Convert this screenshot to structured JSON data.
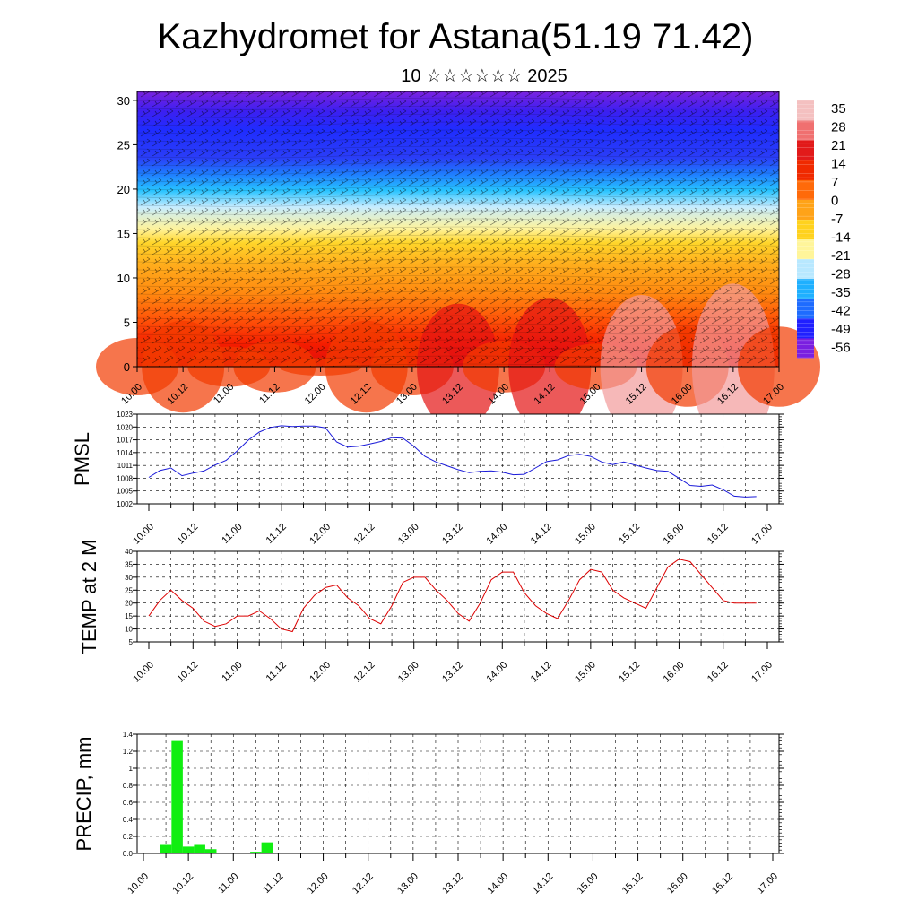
{
  "title": "Kazhydromet for Astana(51.19 71.42)",
  "subtitle": "10 ☆☆☆☆☆☆ 2025",
  "colors": {
    "pmsl_line": "#1a1ad9",
    "temp_line": "#dd0000",
    "precip_bar": "#11ee11",
    "axis": "#000000"
  },
  "chart_data": [
    {
      "id": "cross-section",
      "type": "heatmap",
      "title": "",
      "xlabel": "",
      "ylabel": "",
      "x_ticks": [
        "10.00",
        "10.12",
        "11.00",
        "11.12",
        "12.00",
        "12.12",
        "13.00",
        "13.12",
        "14.00",
        "14.12",
        "15.00",
        "15.12",
        "16.00",
        "16.12",
        "17.00"
      ],
      "y_ticks": [
        0,
        5,
        10,
        15,
        20,
        25,
        30
      ],
      "ylim": [
        0,
        31
      ],
      "overlay": "wind barbs and contour lines",
      "colorbar": {
        "labels": [
          35,
          28,
          21,
          14,
          7,
          0,
          -7,
          -14,
          -21,
          -28,
          -35,
          -42,
          -49,
          -56
        ],
        "range": [
          -60,
          38
        ],
        "colors": [
          "#7a1fe0",
          "#2020ff",
          "#1e6cff",
          "#1fb0ff",
          "#b8e8ff",
          "#fff59a",
          "#ffd21e",
          "#ffa318",
          "#ff6a0a",
          "#f02a00",
          "#e21a1a",
          "#f07070",
          "#f4c0c0"
        ]
      },
      "surface_temp_profile": {
        "x": [
          0,
          0.5,
          1,
          1.5,
          2,
          2.5,
          3,
          3.5,
          4,
          4.5,
          5,
          5.5,
          6,
          6.5,
          7
        ],
        "values": [
          18,
          24,
          15,
          17,
          11,
          24,
          18,
          30,
          17,
          32,
          16,
          33,
          22,
          37,
          22
        ]
      }
    },
    {
      "id": "pmsl",
      "type": "line",
      "ylabel": "PMSL",
      "ylim": [
        1002,
        1023
      ],
      "y_ticks": [
        1002,
        1005,
        1008,
        1011,
        1014,
        1017,
        1020,
        1023
      ],
      "x_ticks": [
        "10.00",
        "10.12",
        "11.00",
        "11.12",
        "12.00",
        "12.12",
        "13.00",
        "13.12",
        "14.00",
        "14.12",
        "15.00",
        "15.12",
        "16.00",
        "16.12",
        "17.00"
      ],
      "x": [
        0,
        0.125,
        0.25,
        0.375,
        0.5,
        0.625,
        0.75,
        0.875,
        1,
        1.125,
        1.25,
        1.375,
        1.5,
        1.625,
        1.75,
        1.875,
        2,
        2.125,
        2.25,
        2.375,
        2.5,
        2.625,
        2.75,
        2.875,
        3,
        3.125,
        3.25,
        3.375,
        3.5,
        3.625,
        3.75,
        3.875,
        4,
        4.125,
        4.25,
        4.375,
        4.5,
        4.625,
        4.75,
        4.875,
        5,
        5.125,
        5.25,
        5.375,
        5.5,
        5.625,
        5.75,
        5.875,
        6,
        6.125,
        6.25,
        6.375,
        6.5,
        6.625,
        6.75,
        6.875
      ],
      "values": [
        1008.2,
        1009.8,
        1010.4,
        1008.6,
        1009.2,
        1009.7,
        1011.1,
        1012.2,
        1014.4,
        1016.9,
        1018.8,
        1019.9,
        1020.3,
        1020.1,
        1020.2,
        1020.2,
        1019.8,
        1016.5,
        1015.3,
        1015.5,
        1016.0,
        1016.6,
        1017.5,
        1017.4,
        1015.5,
        1013.1,
        1011.8,
        1010.9,
        1010.0,
        1009.3,
        1009.6,
        1009.7,
        1009.4,
        1008.8,
        1008.9,
        1010.4,
        1011.9,
        1012.3,
        1013.3,
        1013.6,
        1013.1,
        1011.8,
        1011.2,
        1011.8,
        1011.1,
        1010.4,
        1009.8,
        1009.6,
        1008.0,
        1006.3,
        1006.1,
        1006.4,
        1005.3,
        1003.8,
        1003.6,
        1003.7
      ]
    },
    {
      "id": "temp2m",
      "type": "line",
      "ylabel": "TEMP at 2 M",
      "ylim": [
        5,
        40
      ],
      "y_ticks": [
        5,
        10,
        15,
        20,
        25,
        30,
        35,
        40
      ],
      "x_ticks": [
        "10.00",
        "10.12",
        "11.00",
        "11.12",
        "12.00",
        "12.12",
        "13.00",
        "13.12",
        "14.00",
        "14.12",
        "15.00",
        "15.12",
        "16.00",
        "16.12",
        "17.00"
      ],
      "x": [
        0,
        0.125,
        0.25,
        0.375,
        0.5,
        0.625,
        0.75,
        0.875,
        1,
        1.125,
        1.25,
        1.375,
        1.5,
        1.625,
        1.75,
        1.875,
        2,
        2.125,
        2.25,
        2.375,
        2.5,
        2.625,
        2.75,
        2.875,
        3,
        3.125,
        3.25,
        3.375,
        3.5,
        3.625,
        3.75,
        3.875,
        4,
        4.125,
        4.25,
        4.375,
        4.5,
        4.625,
        4.75,
        4.875,
        5,
        5.125,
        5.25,
        5.375,
        5.5,
        5.625,
        5.75,
        5.875,
        6,
        6.125,
        6.25,
        6.375,
        6.5,
        6.625,
        6.75,
        6.875
      ],
      "values": [
        15,
        21,
        25,
        21,
        18,
        13,
        11,
        12,
        15,
        15,
        17,
        14,
        10,
        9,
        18,
        23,
        26,
        27,
        22,
        19,
        14,
        12,
        19,
        28,
        30,
        30,
        25,
        21,
        16,
        13,
        20,
        29,
        32,
        32,
        24,
        19,
        16,
        14,
        21,
        29,
        33,
        32,
        25,
        22,
        20,
        18,
        26,
        34,
        37,
        36,
        31,
        26,
        21,
        20,
        20,
        20
      ]
    },
    {
      "id": "precip",
      "type": "bar",
      "ylabel": "PRECIP, mm",
      "ylim": [
        0,
        1.4
      ],
      "y_ticks": [
        "0.0",
        "0.2",
        "0.4",
        "0.6",
        "0.8",
        "1",
        "1.2",
        "1.4"
      ],
      "x_ticks": [
        "10.00",
        "10.12",
        "11.00",
        "11.12",
        "12.00",
        "12.12",
        "13.00",
        "13.12",
        "14.00",
        "14.12",
        "15.00",
        "15.12",
        "16.00",
        "16.12",
        "17.00"
      ],
      "x": [
        0.25,
        0.375,
        0.5,
        0.625,
        0.75,
        1,
        1.125,
        1.25,
        1.375
      ],
      "values": [
        0.1,
        1.32,
        0.08,
        0.1,
        0.05,
        0.01,
        0.01,
        0.02,
        0.13
      ]
    }
  ]
}
